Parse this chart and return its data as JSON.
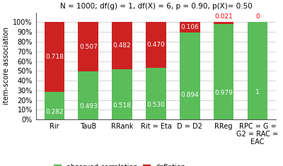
{
  "title": "N = 1000; df(g) = 1, df(X) = 6, p = 0.90, p(X)= 0.50",
  "ylabel": "item-score association",
  "categories": [
    "Rir",
    "TauB",
    "RRank",
    "Rit = Eta",
    "D = D2",
    "RReg",
    "RPC = G =\nG2 = RAC =\nEAC"
  ],
  "green_values": [
    0.282,
    0.493,
    0.518,
    0.53,
    0.894,
    0.979,
    1.0
  ],
  "red_values": [
    0.718,
    0.507,
    0.482,
    0.47,
    0.106,
    0.021,
    0.0
  ],
  "green_labels": [
    "0.282",
    "0.493",
    "0.518",
    "0.530",
    "0.894",
    "0.979",
    "1"
  ],
  "red_labels": [
    "0.718",
    "0.507",
    "0.482",
    "0.470",
    "0.106",
    "0.021",
    "0"
  ],
  "red_label_colors": [
    "white",
    "white",
    "white",
    "white",
    "white",
    "red",
    "red"
  ],
  "green_color": "#5BBD5A",
  "red_color": "#CC2222",
  "background_color": "#ffffff",
  "grid_color": "#cccccc",
  "title_fontsize": 7.5,
  "axis_label_fontsize": 7.0,
  "bar_label_fontsize": 6.5,
  "tick_fontsize": 7.0,
  "legend_fontsize": 7.0,
  "ylim": [
    0,
    1.0
  ],
  "bar_width": 0.6
}
